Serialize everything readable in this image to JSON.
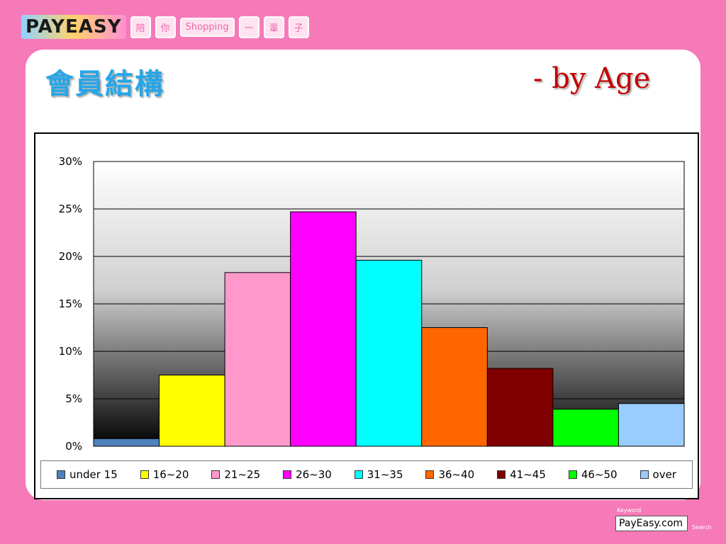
{
  "header": {
    "logo_text": "PAYEASY",
    "tags": [
      "陪",
      "你",
      "Shopping",
      "一",
      "輩",
      "子"
    ]
  },
  "slide": {
    "title_cn": "會員結構",
    "title_en": "- by Age"
  },
  "footer": {
    "keyword_label": "Keyword",
    "search_text": "PayEasy.com",
    "search_label": "Search"
  },
  "chart_data": {
    "type": "bar",
    "title": "",
    "xlabel": "",
    "ylabel": "",
    "ylim": [
      0,
      30
    ],
    "y_ticks": [
      "0%",
      "5%",
      "10%",
      "15%",
      "20%",
      "25%",
      "30%"
    ],
    "categories": [
      "under 15",
      "16~20",
      "21~25",
      "26~30",
      "31~35",
      "36~40",
      "41~45",
      "46~50",
      "over"
    ],
    "values": [
      0.8,
      7.5,
      18.3,
      24.7,
      19.6,
      12.5,
      8.2,
      3.9,
      4.5
    ],
    "colors": [
      "#4f81bd",
      "#ffff00",
      "#ff99cc",
      "#ff00ff",
      "#00ffff",
      "#ff6600",
      "#800000",
      "#00ff00",
      "#99ccff"
    ],
    "grid": true,
    "legend_position": "bottom",
    "background": "gradient white-to-black"
  }
}
